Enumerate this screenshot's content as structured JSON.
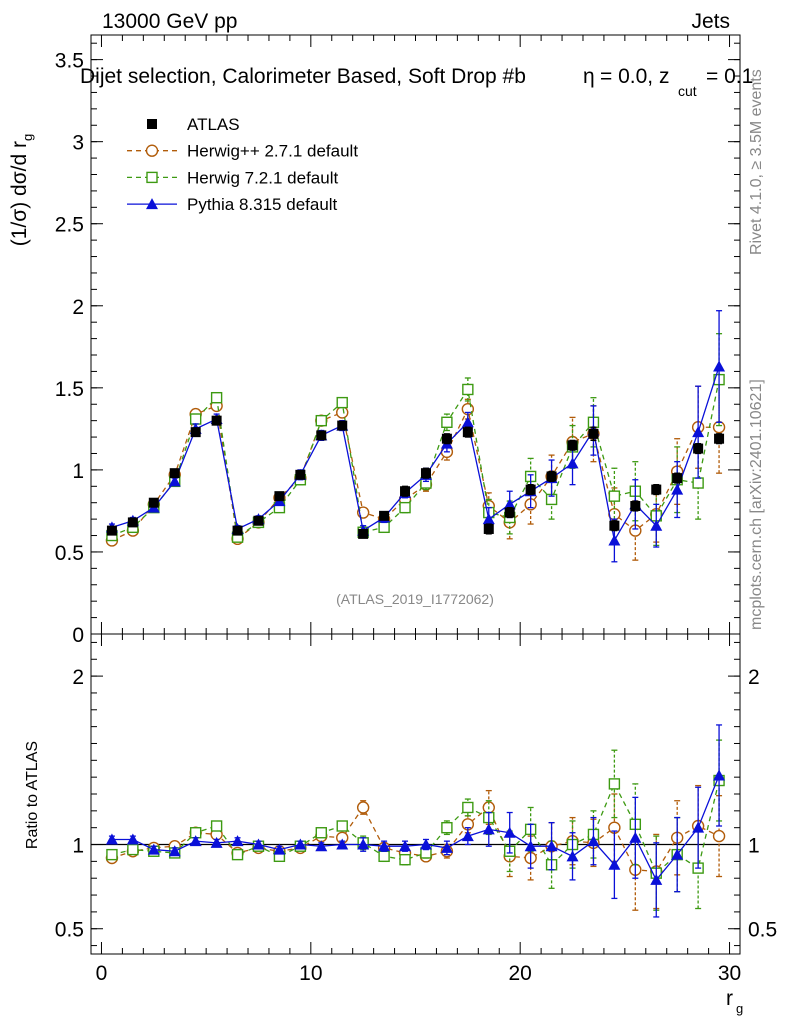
{
  "header": {
    "energy": "13000 GeV pp",
    "process": "Jets",
    "title_main": "Dijet selection, Calorimeter Based, Soft Drop #b",
    "title_eq": "= 0.0, z",
    "title_sub": "cut",
    "title_tail": "= 0.1",
    "title_eta": "η"
  },
  "side": {
    "rivet": "Rivet 4.1.0, ≥ 3.5M events",
    "mcplots": "mcplots.cern.ch [arXiv:2401.10621]"
  },
  "watermark": "(ATLAS_2019_I1772062)",
  "colors": {
    "data": "#000000",
    "herwigpp": "#b15c0a",
    "herwig7": "#3d9a12",
    "pythia": "#0a10d8"
  },
  "chart_data": [
    {
      "type": "scatter",
      "name": "main",
      "ylabel": "(1/σ) dσ/d r",
      "ylabel_sub": "g",
      "xlim": [
        -0.5,
        30.5
      ],
      "ylim": [
        0,
        3.65
      ],
      "yticks": [
        0,
        0.5,
        1,
        1.5,
        2,
        2.5,
        3,
        3.5
      ],
      "ytick_labels": [
        "0",
        "0.5",
        "1",
        "1.5",
        "2",
        "2.5",
        "3",
        "3.5"
      ],
      "x": [
        0.5,
        1.5,
        2.5,
        3.5,
        4.5,
        5.5,
        6.5,
        7.5,
        8.5,
        9.5,
        10.5,
        11.5,
        12.5,
        13.5,
        14.5,
        15.5,
        16.5,
        17.5,
        18.5,
        19.5,
        20.5,
        21.5,
        22.5,
        23.5,
        24.5,
        25.5,
        26.5,
        27.5,
        28.5,
        29.5
      ],
      "legend": [
        "ATLAS",
        "Herwig++ 2.7.1 default",
        "Herwig 7.2.1 default",
        "Pythia 8.315 default"
      ],
      "series": [
        {
          "name": "ATLAS",
          "values": [
            0.63,
            0.68,
            0.8,
            0.98,
            1.23,
            1.3,
            0.63,
            0.69,
            0.84,
            0.97,
            1.21,
            1.27,
            0.61,
            0.72,
            0.87,
            0.98,
            1.19,
            1.23,
            0.64,
            0.74,
            0.88,
            0.96,
            1.15,
            1.22,
            0.66,
            0.78,
            0.88,
            0.95,
            1.13,
            1.19
          ],
          "errors": [
            0.02,
            0.02,
            0.02,
            0.02,
            0.02,
            0.02,
            0.02,
            0.02,
            0.02,
            0.02,
            0.02,
            0.02,
            0.02,
            0.02,
            0.03,
            0.03,
            0.03,
            0.03,
            0.03,
            0.03,
            0.03,
            0.03,
            0.03,
            0.04,
            0.03,
            0.03,
            0.03,
            0.03,
            0.03,
            0.03
          ]
        },
        {
          "name": "Herwig++ 2.7.1 default",
          "values": [
            0.57,
            0.63,
            0.79,
            0.97,
            1.34,
            1.39,
            0.58,
            0.68,
            0.83,
            0.95,
            1.3,
            1.35,
            0.74,
            0.7,
            0.82,
            0.91,
            1.11,
            1.37,
            0.78,
            0.68,
            0.79,
            0.96,
            1.17,
            1.22,
            0.73,
            0.63,
            0.73,
            0.99,
            1.26,
            1.26
          ],
          "errors": [
            0.02,
            0.02,
            0.02,
            0.02,
            0.03,
            0.03,
            0.02,
            0.02,
            0.02,
            0.03,
            0.03,
            0.03,
            0.03,
            0.03,
            0.03,
            0.04,
            0.05,
            0.06,
            0.08,
            0.1,
            0.12,
            0.13,
            0.15,
            0.17,
            0.16,
            0.18,
            0.17,
            0.2,
            0.25,
            0.28
          ]
        },
        {
          "name": "Herwig 7.2.1 default",
          "values": [
            0.6,
            0.65,
            0.77,
            0.93,
            1.31,
            1.44,
            0.59,
            0.68,
            0.77,
            0.94,
            1.3,
            1.41,
            0.62,
            0.65,
            0.77,
            0.92,
            1.29,
            1.49,
            0.74,
            0.71,
            0.96,
            0.82,
            1.14,
            1.29,
            0.84,
            0.87,
            0.72,
            0.94,
            0.92,
            1.55
          ],
          "errors": [
            0.02,
            0.02,
            0.02,
            0.02,
            0.03,
            0.03,
            0.02,
            0.02,
            0.02,
            0.03,
            0.03,
            0.03,
            0.03,
            0.03,
            0.03,
            0.04,
            0.05,
            0.07,
            0.08,
            0.1,
            0.11,
            0.12,
            0.13,
            0.15,
            0.17,
            0.18,
            0.18,
            0.2,
            0.22,
            0.28
          ]
        },
        {
          "name": "Pythia 8.315 default",
          "values": [
            0.65,
            0.69,
            0.77,
            0.93,
            1.25,
            1.31,
            0.64,
            0.7,
            0.81,
            0.97,
            1.21,
            1.27,
            0.63,
            0.71,
            0.86,
            0.97,
            1.16,
            1.29,
            0.7,
            0.79,
            0.87,
            0.95,
            1.04,
            1.24,
            0.57,
            0.79,
            0.66,
            0.88,
            1.23,
            1.63
          ],
          "errors": [
            0.02,
            0.02,
            0.02,
            0.02,
            0.03,
            0.03,
            0.02,
            0.02,
            0.02,
            0.03,
            0.03,
            0.03,
            0.03,
            0.03,
            0.03,
            0.04,
            0.05,
            0.06,
            0.07,
            0.08,
            0.1,
            0.11,
            0.13,
            0.15,
            0.13,
            0.15,
            0.13,
            0.17,
            0.28,
            0.34
          ]
        }
      ]
    },
    {
      "type": "scatter",
      "name": "ratio",
      "ylabel": "Ratio to ATLAS",
      "xlabel": "r",
      "xlabel_sub": "g",
      "xlim": [
        -0.5,
        30.5
      ],
      "ylim": [
        0.35,
        2.25
      ],
      "yticks": [
        0.5,
        1,
        2
      ],
      "ytick_labels": [
        "0.5",
        "1",
        "2"
      ],
      "xticks": [
        0,
        10,
        20,
        30
      ],
      "xtick_labels": [
        "0",
        "10",
        "20",
        "30"
      ],
      "x": [
        0.5,
        1.5,
        2.5,
        3.5,
        4.5,
        5.5,
        6.5,
        7.5,
        8.5,
        9.5,
        10.5,
        11.5,
        12.5,
        13.5,
        14.5,
        15.5,
        16.5,
        17.5,
        18.5,
        19.5,
        20.5,
        21.5,
        22.5,
        23.5,
        24.5,
        25.5,
        26.5,
        27.5,
        28.5,
        29.5
      ],
      "series": [
        {
          "name": "ATLAS",
          "values": [
            1,
            1,
            1,
            1,
            1,
            1,
            1,
            1,
            1,
            1,
            1,
            1,
            1,
            1,
            1,
            1,
            1,
            1,
            1,
            1,
            1,
            1,
            1,
            1,
            1,
            1,
            1,
            1,
            1,
            1
          ],
          "errors": [
            0,
            0,
            0,
            0,
            0,
            0,
            0,
            0,
            0,
            0,
            0,
            0,
            0,
            0,
            0,
            0,
            0,
            0,
            0,
            0,
            0,
            0,
            0,
            0,
            0,
            0,
            0,
            0,
            0,
            0
          ]
        },
        {
          "name": "Herwig++ 2.7.1 default",
          "values": [
            0.92,
            0.96,
            0.98,
            0.99,
            1.07,
            1.06,
            0.95,
            0.98,
            0.96,
            0.98,
            1.05,
            1.04,
            1.22,
            0.98,
            0.95,
            0.93,
            0.96,
            1.12,
            1.22,
            0.93,
            0.92,
            0.99,
            1.02,
            1.01,
            1.1,
            0.85,
            0.84,
            1.04,
            1.11,
            1.05
          ],
          "errors": [
            0.02,
            0.02,
            0.02,
            0.02,
            0.02,
            0.02,
            0.02,
            0.02,
            0.02,
            0.02,
            0.02,
            0.02,
            0.04,
            0.03,
            0.03,
            0.03,
            0.04,
            0.05,
            0.1,
            0.12,
            0.13,
            0.14,
            0.14,
            0.14,
            0.2,
            0.24,
            0.22,
            0.22,
            0.24,
            0.24
          ]
        },
        {
          "name": "Herwig 7.2.1 default",
          "values": [
            0.94,
            0.97,
            0.96,
            0.95,
            1.07,
            1.11,
            0.94,
            0.99,
            0.93,
            0.99,
            1.07,
            1.11,
            1.01,
            0.93,
            0.91,
            0.95,
            1.1,
            1.22,
            1.16,
            0.96,
            1.09,
            0.88,
            1.0,
            1.06,
            1.36,
            1.12,
            0.83,
            0.94,
            0.86,
            1.38
          ],
          "errors": [
            0.02,
            0.02,
            0.02,
            0.02,
            0.02,
            0.02,
            0.02,
            0.02,
            0.02,
            0.02,
            0.02,
            0.02,
            0.04,
            0.03,
            0.03,
            0.03,
            0.04,
            0.05,
            0.1,
            0.12,
            0.13,
            0.14,
            0.14,
            0.14,
            0.2,
            0.24,
            0.22,
            0.22,
            0.24,
            0.24
          ]
        },
        {
          "name": "Pythia 8.315 default",
          "values": [
            1.03,
            1.03,
            0.97,
            0.96,
            1.02,
            1.01,
            1.02,
            1.0,
            0.97,
            1.0,
            0.99,
            1.0,
            1.0,
            0.99,
            0.99,
            1.0,
            0.98,
            1.05,
            1.09,
            1.07,
            0.99,
            0.99,
            0.93,
            1.02,
            0.88,
            1.04,
            0.79,
            0.94,
            1.1,
            1.41
          ],
          "errors": [
            0.02,
            0.02,
            0.02,
            0.02,
            0.02,
            0.02,
            0.02,
            0.02,
            0.02,
            0.02,
            0.02,
            0.02,
            0.04,
            0.03,
            0.03,
            0.03,
            0.04,
            0.05,
            0.1,
            0.12,
            0.13,
            0.14,
            0.14,
            0.14,
            0.2,
            0.24,
            0.22,
            0.22,
            0.24,
            0.3
          ]
        }
      ]
    }
  ]
}
